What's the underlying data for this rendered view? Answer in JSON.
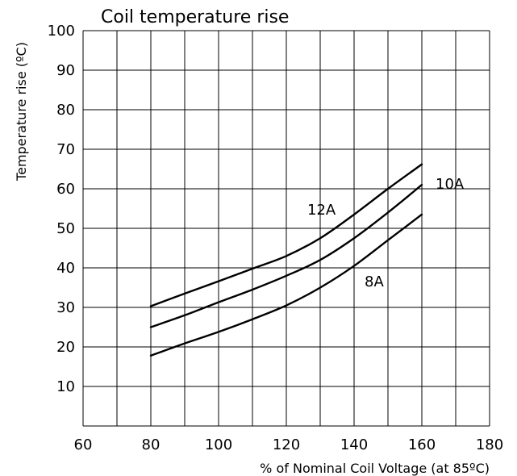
{
  "chart_data": {
    "type": "line",
    "title": "Coil temperature rise",
    "xlabel": "% of Nominal Coil Voltage (at 85ºC)",
    "ylabel": "Temperature rise (ºC)",
    "xlim": [
      60,
      180
    ],
    "ylim": [
      0,
      100
    ],
    "x_ticks": [
      60,
      80,
      100,
      120,
      140,
      160,
      180
    ],
    "y_ticks": [
      10,
      20,
      30,
      40,
      50,
      60,
      70,
      80,
      90,
      100
    ],
    "grid": true,
    "series": [
      {
        "name": "12A",
        "x": [
          80,
          90,
          100,
          110,
          120,
          130,
          140,
          150,
          160
        ],
        "y": [
          30.3,
          33.5,
          36.6,
          39.8,
          43.0,
          47.5,
          53.5,
          60.0,
          66.2
        ]
      },
      {
        "name": "10A",
        "x": [
          80,
          90,
          100,
          110,
          120,
          130,
          140,
          150,
          160
        ],
        "y": [
          25.0,
          28.0,
          31.3,
          34.5,
          38.0,
          42.0,
          47.5,
          54.0,
          61.0
        ]
      },
      {
        "name": "8A",
        "x": [
          80,
          90,
          100,
          110,
          120,
          130,
          140,
          150,
          160
        ],
        "y": [
          17.8,
          20.9,
          23.8,
          27.0,
          30.5,
          35.0,
          40.5,
          47.0,
          53.5
        ]
      }
    ]
  }
}
